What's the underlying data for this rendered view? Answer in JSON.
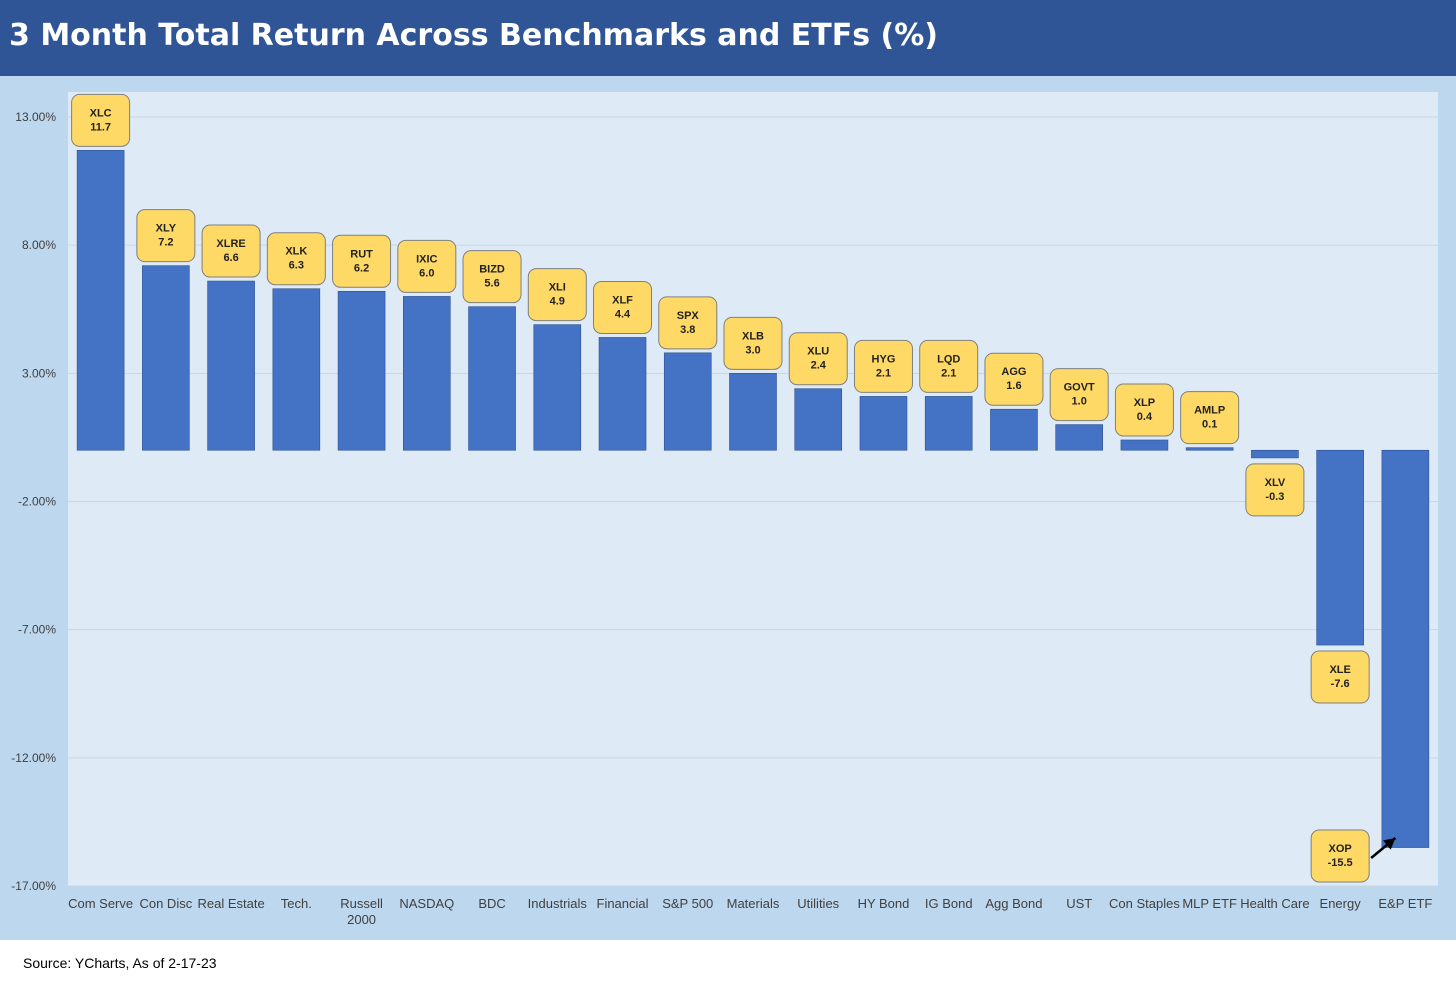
{
  "title": "3 Month Total Return Across Benchmarks and ETFs (%)",
  "source": "Source: YCharts, As of 2-17-23",
  "colors": {
    "header": "#2f5597",
    "outer_background": "#bdd7ee",
    "plot_background": "#deebf7",
    "bar": "#4472c4",
    "label_box": "#ffd966"
  },
  "chart_data": {
    "type": "bar",
    "title": "3 Month Total Return Across Benchmarks and ETFs (%)",
    "xlabel": "",
    "ylabel": "",
    "ylim": [
      -17,
      13
    ],
    "yticks": [
      13,
      8,
      3,
      -2,
      -7,
      -12,
      -17
    ],
    "ytick_labels": [
      "13.00%",
      "8.00%",
      "3.00%",
      "-2.00%",
      "-7.00%",
      "-12.00%",
      "-17.00%"
    ],
    "grid": true,
    "categories": [
      "Com Serve",
      "Con Disc",
      "Real Estate",
      "Tech.",
      "Russell 2000",
      "NASDAQ",
      "BDC",
      "Industrials",
      "Financial",
      "S&P 500",
      "Materials",
      "Utilities",
      "HY Bond",
      "IG Bond",
      "Agg Bond",
      "UST",
      "Con Staples",
      "MLP ETF",
      "Health Care",
      "Energy",
      "E&P ETF"
    ],
    "category_lines": [
      [
        "Com Serve"
      ],
      [
        "Con Disc"
      ],
      [
        "Real Estate"
      ],
      [
        "Tech."
      ],
      [
        "Russell",
        "2000"
      ],
      [
        "NASDAQ"
      ],
      [
        "BDC"
      ],
      [
        "Industrials"
      ],
      [
        "Financial"
      ],
      [
        "S&P 500"
      ],
      [
        "Materials"
      ],
      [
        "Utilities"
      ],
      [
        "HY Bond"
      ],
      [
        "IG Bond"
      ],
      [
        "Agg Bond"
      ],
      [
        "UST"
      ],
      [
        "Con Staples"
      ],
      [
        "MLP ETF"
      ],
      [
        "Health Care"
      ],
      [
        "Energy"
      ],
      [
        "E&P ETF"
      ]
    ],
    "values": [
      11.7,
      7.2,
      6.6,
      6.3,
      6.2,
      6.0,
      5.6,
      4.9,
      4.4,
      3.8,
      3.0,
      2.4,
      2.1,
      2.1,
      1.6,
      1.0,
      0.4,
      0.1,
      -0.3,
      -7.6,
      -15.5
    ],
    "data_labels": [
      {
        "ticker": "XLC",
        "value": "11.7"
      },
      {
        "ticker": "XLY",
        "value": "7.2"
      },
      {
        "ticker": "XLRE",
        "value": "6.6"
      },
      {
        "ticker": "XLK",
        "value": "6.3"
      },
      {
        "ticker": "RUT",
        "value": "6.2"
      },
      {
        "ticker": "IXIC",
        "value": "6.0"
      },
      {
        "ticker": "BIZD",
        "value": "5.6"
      },
      {
        "ticker": "XLI",
        "value": "4.9"
      },
      {
        "ticker": "XLF",
        "value": "4.4"
      },
      {
        "ticker": "SPX",
        "value": "3.8"
      },
      {
        "ticker": "XLB",
        "value": "3.0"
      },
      {
        "ticker": "XLU",
        "value": "2.4"
      },
      {
        "ticker": "HYG",
        "value": "2.1"
      },
      {
        "ticker": "LQD",
        "value": "2.1"
      },
      {
        "ticker": "AGG",
        "value": "1.6"
      },
      {
        "ticker": "GOVT",
        "value": "1.0"
      },
      {
        "ticker": "XLP",
        "value": "0.4"
      },
      {
        "ticker": "AMLP",
        "value": "0.1"
      },
      {
        "ticker": "XLV",
        "value": "-0.3"
      },
      {
        "ticker": "XLE",
        "value": "-7.6"
      },
      {
        "ticker": "XOP",
        "value": "-15.5"
      }
    ]
  }
}
